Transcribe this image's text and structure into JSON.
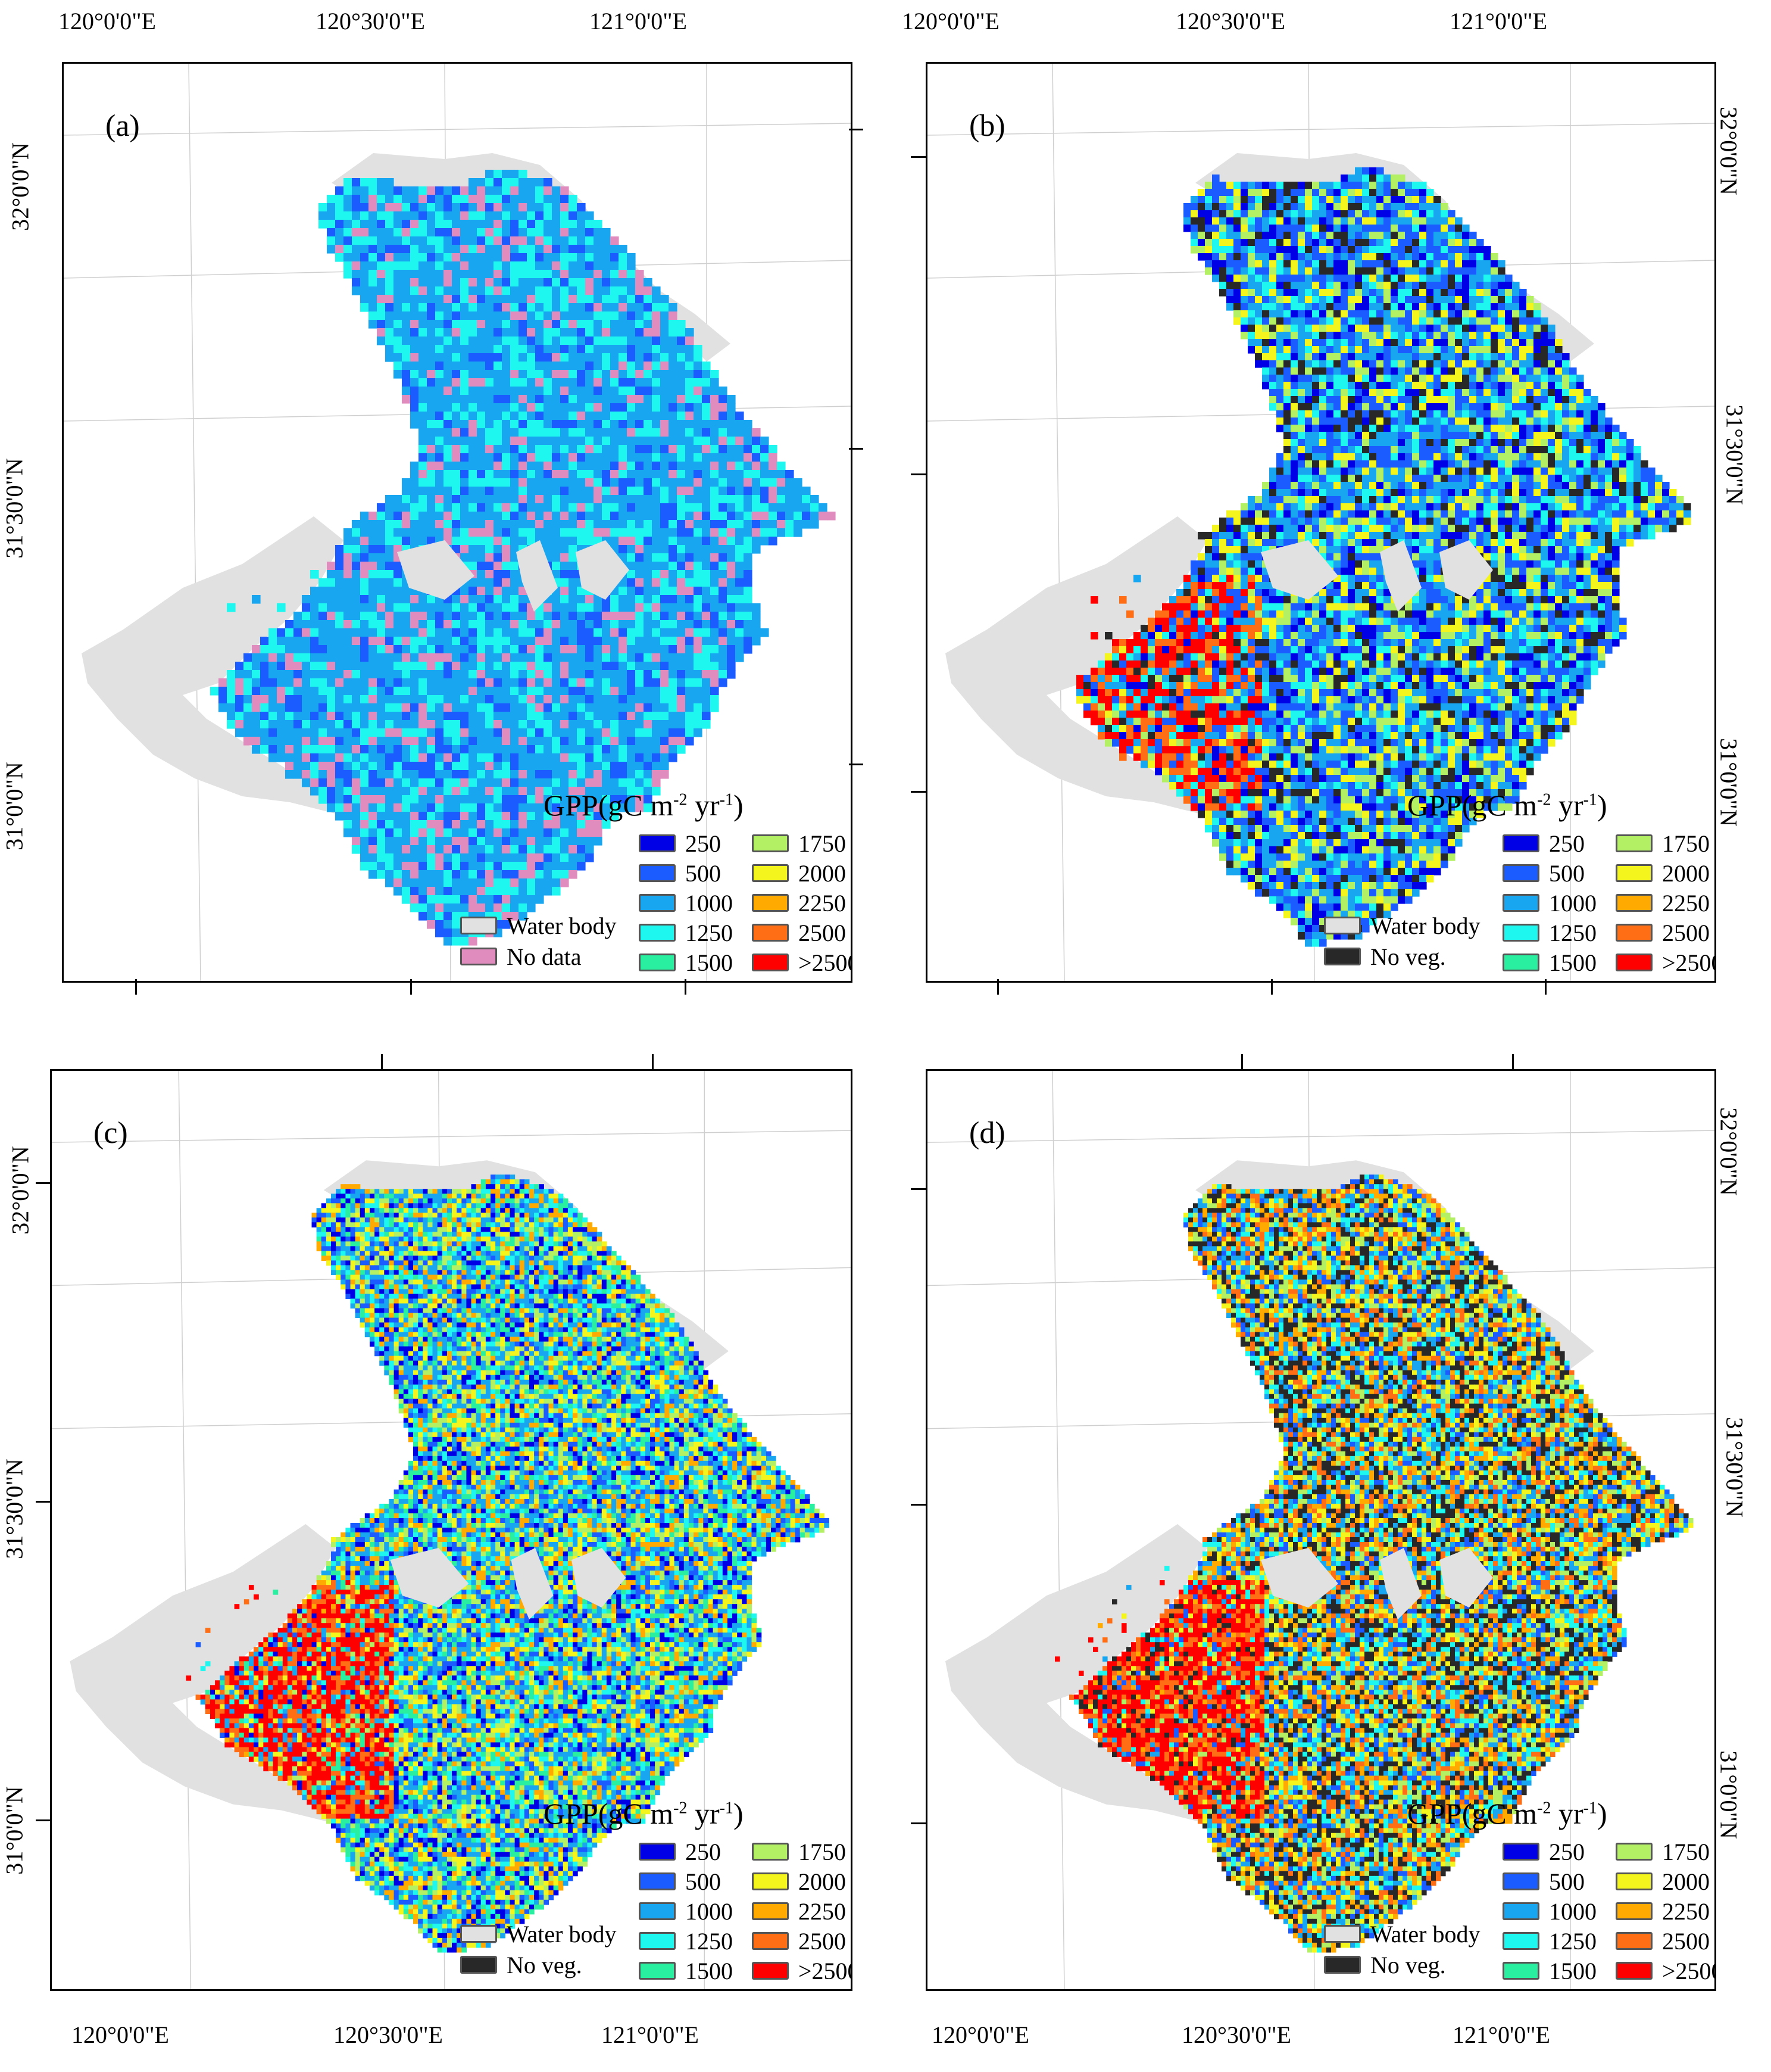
{
  "figure": {
    "top_lon_labels": [
      "120°0'0\"E",
      "120°30'0\"E",
      "121°0'0\"E"
    ],
    "bottom_lon_labels": [
      "120°0'0\"E",
      "120°30'0\"E",
      "121°0'0\"E"
    ],
    "lat_labels": [
      "32°0'0\"N",
      "31°30'0\"N",
      "31°0'0\"N"
    ]
  },
  "panels": [
    {
      "id": "a",
      "label": "(a)",
      "legend_second": "No data"
    },
    {
      "id": "b",
      "label": "(b)",
      "legend_second": "No veg."
    },
    {
      "id": "c",
      "label": "(c)",
      "legend_second": "No veg."
    },
    {
      "id": "d",
      "label": "(d)",
      "legend_second": "No veg."
    }
  ],
  "legend": {
    "title": "GPP(gC m",
    "title_sup1": "-2",
    "title_mid": " yr",
    "title_sup2": "-1",
    "title_end": ")",
    "water_body": "Water body",
    "classes": [
      {
        "label": "250",
        "color": "#0000e6"
      },
      {
        "label": "500",
        "color": "#1a5cff"
      },
      {
        "label": "1000",
        "color": "#18a6f0"
      },
      {
        "label": "1250",
        "color": "#1ef6f0"
      },
      {
        "label": "1500",
        "color": "#28f0a0"
      },
      {
        "label": "1750",
        "color": "#b4f064"
      },
      {
        "label": "2000",
        "color": "#f5f51e"
      },
      {
        "label": "2250",
        "color": "#ffaa00"
      },
      {
        "label": "2500",
        "color": "#ff6e14"
      },
      {
        "label": ">2500",
        "color": "#ff0000"
      }
    ],
    "colors": {
      "water": "#e1e1e1",
      "no_data": "#e18cbe",
      "no_veg": "#282828"
    }
  }
}
